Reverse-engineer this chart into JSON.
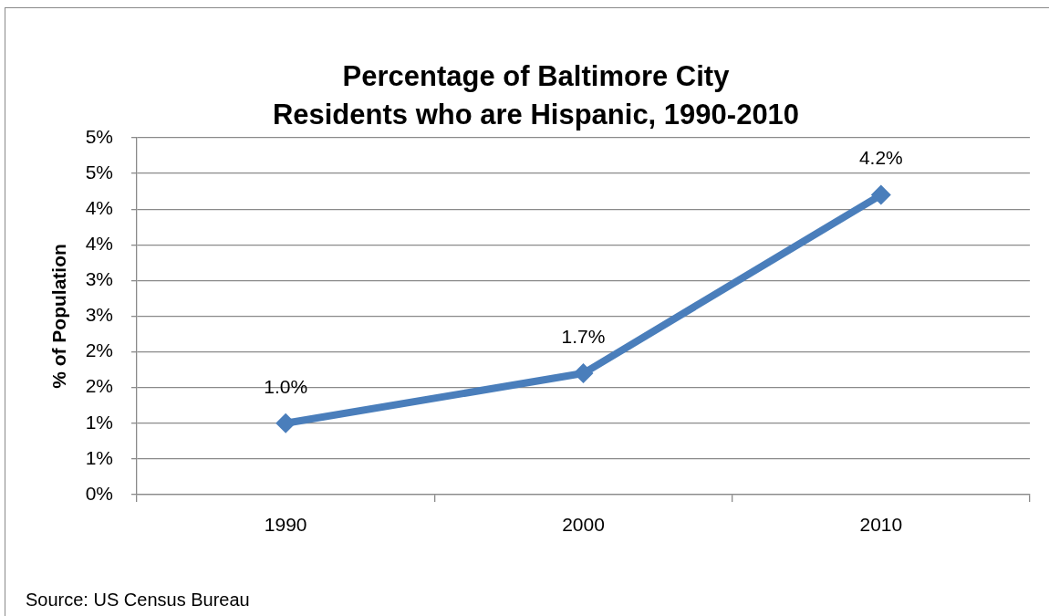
{
  "chart_data": {
    "type": "line",
    "title": "Percentage of Baltimore City\nResidents who are Hispanic, 1990-2010",
    "ylabel": "% of Population",
    "categories": [
      "1990",
      "2000",
      "2010"
    ],
    "values": [
      1.0,
      1.7,
      4.2
    ],
    "color": "#4a7ebb",
    "value_labels": [
      "1.0%",
      "1.7%",
      "4.2%"
    ],
    "ylim": [
      0,
      5
    ],
    "yticks": [
      {
        "value": 0,
        "label": "0%"
      },
      {
        "value": 0.5,
        "label": "1%"
      },
      {
        "value": 1,
        "label": "1%"
      },
      {
        "value": 1.5,
        "label": "2%"
      },
      {
        "value": 2,
        "label": "2%"
      },
      {
        "value": 2.5,
        "label": "3%"
      },
      {
        "value": 3,
        "label": "3%"
      },
      {
        "value": 3.5,
        "label": "4%"
      },
      {
        "value": 4,
        "label": "4%"
      },
      {
        "value": 4.5,
        "label": "5%"
      },
      {
        "value": 5,
        "label": "5%"
      }
    ],
    "grid": "y",
    "marker": "diamond",
    "line_style": "solid",
    "annotations": [
      "Source: US Census Bureau"
    ]
  }
}
